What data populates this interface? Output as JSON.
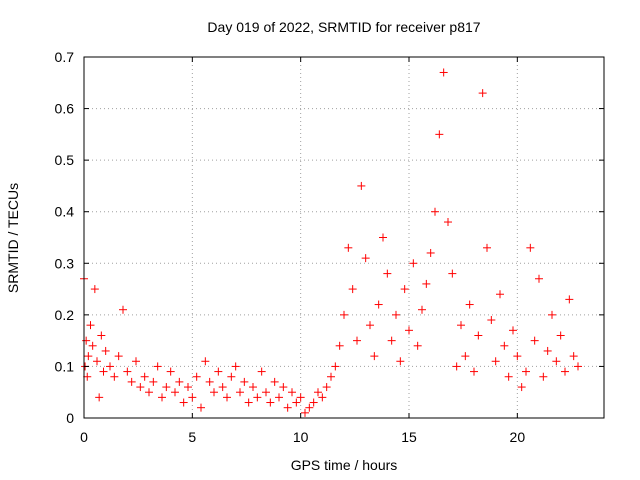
{
  "chart_data": {
    "type": "scatter",
    "title": "Day 019 of 2022, SRMTID for receiver p817",
    "xlabel": "GPS time / hours",
    "ylabel": "SRMTID / TECUs",
    "xlim": [
      0,
      24
    ],
    "ylim": [
      0,
      0.7
    ],
    "xticks": [
      0,
      5,
      10,
      15,
      20
    ],
    "yticks": [
      0,
      0.1,
      0.2,
      0.3,
      0.4,
      0.5,
      0.6,
      0.7
    ],
    "grid": true,
    "marker": "+",
    "color": "#ff0000",
    "series": [
      {
        "name": "SRMTID",
        "x": [
          0.0,
          0.05,
          0.1,
          0.15,
          0.2,
          0.3,
          0.4,
          0.5,
          0.6,
          0.7,
          0.8,
          0.9,
          1.0,
          1.2,
          1.4,
          1.6,
          1.8,
          2.0,
          2.2,
          2.4,
          2.6,
          2.8,
          3.0,
          3.2,
          3.4,
          3.6,
          3.8,
          4.0,
          4.2,
          4.4,
          4.6,
          4.8,
          5.0,
          5.2,
          5.4,
          5.6,
          5.8,
          6.0,
          6.2,
          6.4,
          6.6,
          6.8,
          7.0,
          7.2,
          7.4,
          7.6,
          7.8,
          8.0,
          8.2,
          8.4,
          8.6,
          8.8,
          9.0,
          9.2,
          9.4,
          9.6,
          9.8,
          10.0,
          10.2,
          10.4,
          10.6,
          10.8,
          11.0,
          11.2,
          11.4,
          11.6,
          11.8,
          12.0,
          12.2,
          12.4,
          12.6,
          12.8,
          13.0,
          13.2,
          13.4,
          13.6,
          13.8,
          14.0,
          14.2,
          14.4,
          14.6,
          14.8,
          15.0,
          15.2,
          15.4,
          15.6,
          15.8,
          16.0,
          16.2,
          16.4,
          16.6,
          16.8,
          17.0,
          17.2,
          17.4,
          17.6,
          17.8,
          18.0,
          18.2,
          18.4,
          18.6,
          18.8,
          19.0,
          19.2,
          19.4,
          19.6,
          19.8,
          20.0,
          20.2,
          20.4,
          20.6,
          20.8,
          21.0,
          21.2,
          21.4,
          21.6,
          21.8,
          22.0,
          22.2,
          22.4,
          22.6,
          22.8
        ],
        "y": [
          0.27,
          0.1,
          0.15,
          0.08,
          0.12,
          0.18,
          0.14,
          0.25,
          0.11,
          0.04,
          0.16,
          0.09,
          0.13,
          0.1,
          0.08,
          0.12,
          0.21,
          0.09,
          0.07,
          0.11,
          0.06,
          0.08,
          0.05,
          0.07,
          0.1,
          0.04,
          0.06,
          0.09,
          0.05,
          0.07,
          0.03,
          0.06,
          0.04,
          0.08,
          0.02,
          0.11,
          0.07,
          0.05,
          0.09,
          0.06,
          0.04,
          0.08,
          0.1,
          0.05,
          0.07,
          0.03,
          0.06,
          0.04,
          0.09,
          0.05,
          0.03,
          0.07,
          0.04,
          0.06,
          0.02,
          0.05,
          0.03,
          0.04,
          0.01,
          0.02,
          0.03,
          0.05,
          0.04,
          0.06,
          0.08,
          0.1,
          0.14,
          0.2,
          0.33,
          0.25,
          0.15,
          0.45,
          0.31,
          0.18,
          0.12,
          0.22,
          0.35,
          0.28,
          0.15,
          0.2,
          0.11,
          0.25,
          0.17,
          0.3,
          0.14,
          0.21,
          0.26,
          0.32,
          0.4,
          0.55,
          0.67,
          0.38,
          0.28,
          0.1,
          0.18,
          0.12,
          0.22,
          0.09,
          0.16,
          0.63,
          0.33,
          0.19,
          0.11,
          0.24,
          0.14,
          0.08,
          0.17,
          0.12,
          0.06,
          0.09,
          0.33,
          0.15,
          0.27,
          0.08,
          0.13,
          0.2,
          0.11,
          0.16,
          0.09,
          0.23,
          0.12,
          0.1
        ]
      }
    ]
  }
}
